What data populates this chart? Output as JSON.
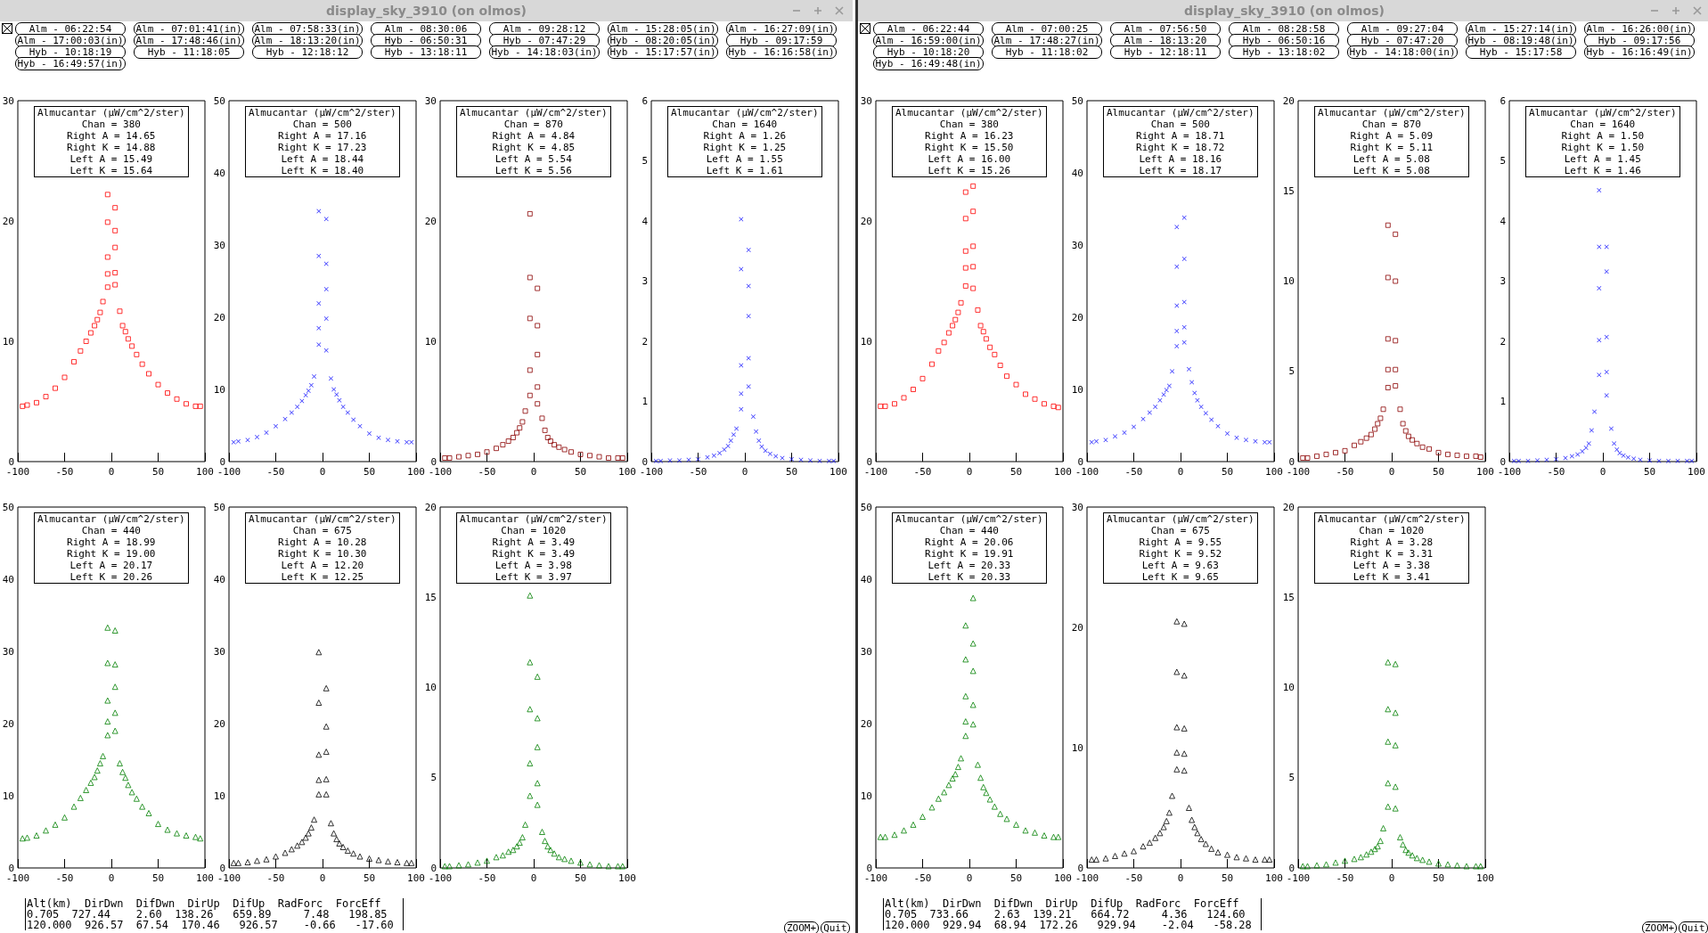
{
  "chart_data": [
    {
      "type": "other",
      "title": "display_sky_3910 (on olmos)",
      "annotations": [
        "Alm - 06:22:54",
        "Alm - 07:01:41(in)",
        "Alm - 07:58:33(in)",
        "Alm - 08:30:06",
        "Alm - 09:28:12",
        "Alm - 15:28:05(in)",
        "Alm - 16:27:09(in)",
        "Alm - 17:00:03(in)",
        "Alm - 17:48:46(in)",
        "Alm - 18:13:20(in)",
        "Hyb - 06:50:31",
        "Hyb - 07:47:29",
        "Hyb - 08:20:05(in)",
        "Hyb - 09:17:59",
        "Hyb - 10:18:19",
        "Hyb - 11:18:05",
        "Hyb - 12:18:12",
        "Hyb - 13:18:11",
        "Hyb - 14:18:03(in)",
        "Hyb - 15:17:57(in)",
        "Hyb - 16:16:58(in)",
        "Hyb - 16:49:57(in)"
      ]
    },
    {
      "type": "scatter",
      "title": "Almucantar (µW/cm^2/ster)",
      "annotations": [
        "Chan = 380",
        "Right A = 14.65",
        "Right K = 14.88",
        "Left A = 15.49",
        "Left K = 15.64"
      ],
      "marker": "square",
      "xlim": [
        -100,
        100
      ],
      "xticks": [
        -100,
        -50,
        0,
        50,
        100
      ],
      "ylim": [
        0,
        30
      ],
      "yticks": [
        0,
        10,
        20,
        30
      ],
      "x": [
        -95,
        -90,
        -80,
        -70,
        -60,
        -50,
        -40,
        -33,
        -27,
        -22,
        -18,
        -15,
        -12,
        -9,
        -4,
        -4,
        -4,
        -4,
        -4,
        4,
        4,
        4,
        4,
        4,
        9,
        12,
        15,
        18,
        22,
        27,
        33,
        40,
        50,
        60,
        70,
        80,
        90,
        95
      ],
      "series": [
        {
          "color": "#ff0000",
          "values": [
            4.6,
            4.7,
            4.9,
            5.4,
            6.1,
            7.0,
            8.3,
            9.2,
            10.0,
            10.7,
            11.3,
            11.8,
            12.4,
            13.3,
            14.5,
            15.6,
            17.0,
            19.9,
            22.2,
            21.1,
            19.2,
            17.8,
            15.7,
            14.7,
            12.5,
            11.3,
            10.8,
            10.2,
            9.6,
            8.9,
            8.1,
            7.3,
            6.4,
            5.7,
            5.2,
            4.8,
            4.6,
            4.6
          ]
        }
      ]
    },
    {
      "type": "scatter",
      "title": "Almucantar (µW/cm^2/ster)",
      "annotations": [
        "Chan = 500",
        "Right A = 17.16",
        "Right K = 17.23",
        "Left A = 18.44",
        "Left K = 18.40"
      ],
      "marker": "cross",
      "xlim": [
        -100,
        100
      ],
      "xticks": [
        -100,
        -50,
        0,
        50,
        100
      ],
      "ylim": [
        0,
        50
      ],
      "yticks": [
        0,
        10,
        20,
        30,
        40,
        50
      ],
      "x": [
        -95,
        -90,
        -80,
        -70,
        -60,
        -50,
        -40,
        -33,
        -27,
        -22,
        -18,
        -15,
        -12,
        -9,
        -4,
        -4,
        -4,
        -4,
        -4,
        4,
        4,
        4,
        4,
        4,
        9,
        12,
        15,
        18,
        22,
        27,
        33,
        40,
        50,
        60,
        70,
        80,
        90,
        95
      ],
      "series": [
        {
          "color": "#0000ff",
          "values": [
            2.7,
            2.8,
            3.0,
            3.4,
            4.0,
            4.9,
            5.9,
            6.8,
            7.6,
            8.4,
            9.2,
            9.8,
            10.6,
            11.8,
            16.2,
            18.5,
            21.9,
            28.5,
            34.7,
            33.6,
            27.4,
            23.9,
            19.8,
            15.4,
            11.5,
            10.0,
            9.3,
            8.5,
            7.6,
            6.8,
            5.8,
            4.9,
            3.9,
            3.3,
            3.0,
            2.8,
            2.7,
            2.7
          ]
        }
      ]
    },
    {
      "type": "scatter",
      "title": "Almucantar (µW/cm^2/ster)",
      "annotations": [
        "Chan = 870",
        "Right A = 4.84",
        "Right K = 4.85",
        "Left A = 5.54",
        "Left K = 5.56"
      ],
      "marker": "square",
      "xlim": [
        -100,
        100
      ],
      "xticks": [
        -100,
        -50,
        0,
        50,
        100
      ],
      "ylim": [
        0,
        30
      ],
      "yticks": [
        0,
        10,
        20,
        30
      ],
      "x": [
        -95,
        -90,
        -80,
        -70,
        -60,
        -50,
        -40,
        -33,
        -27,
        -22,
        -18,
        -15,
        -12,
        -9,
        -4,
        -4,
        -4,
        -4,
        -4,
        4,
        4,
        4,
        4,
        4,
        9,
        12,
        15,
        18,
        22,
        27,
        33,
        40,
        50,
        60,
        70,
        80,
        90,
        95
      ],
      "series": [
        {
          "color": "#8b0000",
          "values": [
            0.3,
            0.3,
            0.4,
            0.5,
            0.6,
            0.8,
            1.1,
            1.4,
            1.7,
            2.0,
            2.4,
            2.8,
            3.3,
            4.2,
            5.5,
            7.6,
            11.9,
            15.3,
            20.6,
            14.4,
            11.3,
            8.9,
            6.2,
            4.8,
            3.6,
            2.6,
            2.0,
            1.7,
            1.4,
            1.2,
            1.0,
            0.8,
            0.6,
            0.5,
            0.4,
            0.3,
            0.3,
            0.3
          ]
        }
      ]
    },
    {
      "type": "scatter",
      "title": "Almucantar (µW/cm^2/ster)",
      "annotations": [
        "Chan = 1640",
        "Right A = 1.26",
        "Right K = 1.25",
        "Left A = 1.55",
        "Left K = 1.61"
      ],
      "marker": "cross",
      "xlim": [
        -100,
        100
      ],
      "xticks": [
        -100,
        -50,
        0,
        50,
        100
      ],
      "ylim": [
        0,
        6
      ],
      "yticks": [
        0,
        1,
        2,
        3,
        4,
        5,
        6
      ],
      "x": [
        -95,
        -90,
        -80,
        -70,
        -60,
        -50,
        -40,
        -33,
        -27,
        -22,
        -18,
        -15,
        -12,
        -9,
        -4,
        -4,
        -4,
        -4,
        -4,
        4,
        4,
        4,
        4,
        4,
        9,
        12,
        15,
        18,
        22,
        27,
        33,
        40,
        50,
        60,
        70,
        80,
        90,
        95
      ],
      "series": [
        {
          "color": "#0000ff",
          "values": [
            0.01,
            0.01,
            0.02,
            0.02,
            0.03,
            0.04,
            0.07,
            0.1,
            0.14,
            0.2,
            0.26,
            0.35,
            0.45,
            0.55,
            0.87,
            1.13,
            1.6,
            3.2,
            4.03,
            3.52,
            2.92,
            2.42,
            1.72,
            1.25,
            0.75,
            0.5,
            0.35,
            0.25,
            0.18,
            0.13,
            0.09,
            0.06,
            0.04,
            0.03,
            0.02,
            0.01,
            0.01,
            0.01
          ]
        }
      ]
    },
    {
      "type": "scatter",
      "title": "Almucantar (µW/cm^2/ster)",
      "annotations": [
        "Chan = 440",
        "Right A = 18.99",
        "Right K = 19.00",
        "Left A = 20.17",
        "Left K = 20.26"
      ],
      "marker": "triangle",
      "xlim": [
        -100,
        100
      ],
      "xticks": [
        -100,
        -50,
        0,
        50,
        100
      ],
      "ylim": [
        0,
        50
      ],
      "yticks": [
        0,
        10,
        20,
        30,
        40,
        50
      ],
      "x": [
        -95,
        -90,
        -80,
        -70,
        -60,
        -50,
        -40,
        -33,
        -27,
        -22,
        -18,
        -15,
        -12,
        -9,
        -4,
        -4,
        -4,
        -4,
        -4,
        4,
        4,
        4,
        4,
        4,
        9,
        12,
        15,
        18,
        22,
        27,
        33,
        40,
        50,
        60,
        70,
        80,
        90,
        95
      ],
      "series": [
        {
          "color": "#008000",
          "values": [
            4.1,
            4.2,
            4.5,
            5.2,
            6.0,
            7.0,
            8.5,
            9.7,
            10.8,
            11.8,
            12.6,
            13.5,
            14.5,
            15.5,
            18.4,
            20.3,
            23.2,
            28.4,
            33.3,
            32.9,
            28.2,
            25.1,
            21.5,
            19.0,
            14.5,
            13.3,
            12.5,
            11.5,
            10.5,
            9.6,
            8.5,
            7.6,
            6.1,
            5.3,
            4.8,
            4.5,
            4.3,
            4.1
          ]
        }
      ]
    },
    {
      "type": "scatter",
      "title": "Almucantar (µW/cm^2/ster)",
      "annotations": [
        "Chan = 675",
        "Right A = 10.28",
        "Right K = 10.30",
        "Left A = 12.20",
        "Left K = 12.25"
      ],
      "marker": "triangle",
      "xlim": [
        -100,
        100
      ],
      "xticks": [
        -100,
        -50,
        0,
        50,
        100
      ],
      "ylim": [
        0,
        50
      ],
      "yticks": [
        0,
        10,
        20,
        30,
        40,
        50
      ],
      "x": [
        -95,
        -90,
        -80,
        -70,
        -60,
        -50,
        -40,
        -33,
        -27,
        -22,
        -18,
        -15,
        -12,
        -9,
        -4,
        -4,
        -4,
        -4,
        -4,
        4,
        4,
        4,
        4,
        4,
        9,
        12,
        15,
        18,
        22,
        27,
        33,
        40,
        50,
        60,
        70,
        80,
        90,
        95
      ],
      "series": [
        {
          "color": "#000000",
          "values": [
            0.7,
            0.7,
            0.8,
            1.0,
            1.2,
            1.6,
            2.1,
            2.6,
            3.1,
            3.6,
            4.2,
            4.8,
            5.6,
            6.7,
            10.2,
            12.2,
            15.7,
            22.9,
            29.9,
            24.9,
            19.6,
            16.1,
            12.3,
            10.2,
            6.2,
            4.8,
            4.0,
            3.4,
            2.9,
            2.4,
            2.0,
            1.6,
            1.3,
            1.1,
            0.9,
            0.8,
            0.7,
            0.7
          ]
        }
      ]
    },
    {
      "type": "scatter",
      "title": "Almucantar (µW/cm^2/ster)",
      "annotations": [
        "Chan = 1020",
        "Right A = 3.49",
        "Right K = 3.49",
        "Left A = 3.98",
        "Left K = 3.97"
      ],
      "marker": "triangle",
      "xlim": [
        -100,
        100
      ],
      "xticks": [
        -100,
        -50,
        0,
        50,
        100
      ],
      "ylim": [
        0,
        20
      ],
      "yticks": [
        0,
        5,
        10,
        15,
        20
      ],
      "x": [
        -95,
        -90,
        -80,
        -70,
        -60,
        -50,
        -40,
        -33,
        -27,
        -22,
        -18,
        -15,
        -12,
        -9,
        -4,
        -4,
        -4,
        -4,
        -4,
        4,
        4,
        4,
        4,
        4,
        9,
        12,
        15,
        18,
        22,
        27,
        33,
        40,
        50,
        60,
        70,
        80,
        90,
        95
      ],
      "series": [
        {
          "color": "#008000",
          "values": [
            0.1,
            0.1,
            0.15,
            0.2,
            0.3,
            0.4,
            0.6,
            0.7,
            0.9,
            1.0,
            1.2,
            1.4,
            1.7,
            2.4,
            4.0,
            5.8,
            8.8,
            11.4,
            15.1,
            10.6,
            8.3,
            6.7,
            4.7,
            3.5,
            2.0,
            1.5,
            1.2,
            1.0,
            0.8,
            0.6,
            0.5,
            0.4,
            0.3,
            0.2,
            0.15,
            0.1,
            0.1,
            0.1
          ]
        }
      ]
    },
    {
      "type": "other",
      "annotations": [
        "Alt(km)  DirDwn  DifDwn  DirUp  DifUp  RadForc  ForcEff",
        "0.705  727.44    2.60  138.26   659.89     7.48   198.85",
        "120.000  926.57  67.54  170.46   926.57    -0.66   -17.60"
      ]
    },
    {
      "type": "other",
      "annotations": [
        "ZOOM+",
        "Quit"
      ]
    },
    {
      "type": "other",
      "title": "display_sky_3910 (on olmos)",
      "annotations": [
        "Alm - 06:22:44",
        "Alm - 07:00:25",
        "Alm - 07:56:50",
        "Alm - 08:28:58",
        "Alm - 09:27:04",
        "Alm - 15:27:14(in)",
        "Alm - 16:26:00(in)",
        "Alm - 16:59:00(in)",
        "Alm - 17:48:27(in)",
        "Alm - 18:13:20",
        "Hyb - 06:50:16",
        "Hyb - 07:47:20",
        "Hyb - 08:19:48(in)",
        "Hyb - 09:17:56",
        "Hyb - 10:18:20",
        "Hyb - 11:18:02",
        "Hyb - 12:18:11",
        "Hyb - 13:18:02",
        "Hyb - 14:18:00(in)",
        "Hyb - 15:17:58",
        "Hyb - 16:16:49(in)",
        "Hyb - 16:49:48(in)"
      ]
    },
    {
      "type": "scatter",
      "title": "Almucantar (µW/cm^2/ster)",
      "annotations": [
        "Chan = 380",
        "Right A = 16.23",
        "Right K = 15.50",
        "Left A = 16.00",
        "Left K = 15.26"
      ],
      "marker": "square",
      "xlim": [
        -100,
        100
      ],
      "xticks": [
        -100,
        -50,
        0,
        50,
        100
      ],
      "ylim": [
        0,
        30
      ],
      "yticks": [
        0,
        10,
        20,
        30
      ],
      "x": [
        -95,
        -90,
        -80,
        -70,
        -60,
        -50,
        -40,
        -33,
        -27,
        -22,
        -18,
        -15,
        -12,
        -9,
        -4,
        -4,
        -4,
        -4,
        -4,
        4,
        4,
        4,
        4,
        4,
        9,
        12,
        15,
        18,
        22,
        27,
        33,
        40,
        50,
        60,
        70,
        80,
        90,
        95
      ],
      "series": [
        {
          "color": "#ff0000",
          "values": [
            4.6,
            4.6,
            4.8,
            5.3,
            6.0,
            6.9,
            8.1,
            9.2,
            9.9,
            10.7,
            11.3,
            11.8,
            12.4,
            13.2,
            14.6,
            16.1,
            17.5,
            20.2,
            22.4,
            22.9,
            20.8,
            17.9,
            16.2,
            14.4,
            12.6,
            11.3,
            10.8,
            10.2,
            9.5,
            8.9,
            8.0,
            7.1,
            6.4,
            5.6,
            5.2,
            4.8,
            4.6,
            4.5
          ]
        }
      ]
    },
    {
      "type": "scatter",
      "title": "Almucantar (µW/cm^2/ster)",
      "annotations": [
        "Chan = 500",
        "Right A = 18.71",
        "Right K = 18.72",
        "Left A = 18.16",
        "Left K = 18.17"
      ],
      "marker": "cross",
      "xlim": [
        -100,
        100
      ],
      "xticks": [
        -100,
        -50,
        0,
        50,
        100
      ],
      "ylim": [
        0,
        50
      ],
      "yticks": [
        0,
        10,
        20,
        30,
        40,
        50
      ],
      "x": [
        -95,
        -90,
        -80,
        -70,
        -60,
        -50,
        -40,
        -33,
        -27,
        -22,
        -18,
        -15,
        -12,
        -9,
        -4,
        -4,
        -4,
        -4,
        -4,
        4,
        4,
        4,
        4,
        4,
        9,
        12,
        15,
        18,
        22,
        27,
        33,
        40,
        50,
        60,
        70,
        80,
        90,
        95
      ],
      "series": [
        {
          "color": "#0000ff",
          "values": [
            2.7,
            2.8,
            3.0,
            3.5,
            4.0,
            4.8,
            5.9,
            6.8,
            7.6,
            8.5,
            9.3,
            9.9,
            10.5,
            12.5,
            16.0,
            18.1,
            21.6,
            27.0,
            32.5,
            33.8,
            28.1,
            22.1,
            18.6,
            16.5,
            12.8,
            11.0,
            9.5,
            8.5,
            7.6,
            6.7,
            5.8,
            4.9,
            3.9,
            3.3,
            3.0,
            2.8,
            2.7,
            2.7
          ]
        }
      ]
    },
    {
      "type": "scatter",
      "title": "Almucantar (µW/cm^2/ster)",
      "annotations": [
        "Chan = 870",
        "Right A = 5.09",
        "Right K = 5.11",
        "Left A = 5.08",
        "Left K = 5.08"
      ],
      "marker": "square",
      "xlim": [
        -100,
        100
      ],
      "xticks": [
        -100,
        -50,
        0,
        50,
        100
      ],
      "ylim": [
        0,
        20
      ],
      "yticks": [
        0,
        5,
        10,
        15,
        20
      ],
      "x": [
        -95,
        -90,
        -80,
        -70,
        -60,
        -50,
        -40,
        -33,
        -27,
        -22,
        -18,
        -15,
        -12,
        -9,
        -4,
        -4,
        -4,
        -4,
        -4,
        4,
        4,
        4,
        4,
        4,
        9,
        12,
        15,
        18,
        22,
        27,
        33,
        40,
        50,
        60,
        70,
        80,
        90,
        95
      ],
      "series": [
        {
          "color": "#8b0000",
          "values": [
            0.2,
            0.2,
            0.3,
            0.4,
            0.5,
            0.6,
            0.9,
            1.1,
            1.3,
            1.5,
            1.8,
            2.1,
            2.4,
            2.9,
            4.1,
            5.1,
            6.8,
            10.2,
            13.1,
            12.6,
            10.0,
            6.7,
            5.1,
            4.2,
            2.9,
            2.1,
            1.7,
            1.4,
            1.2,
            1.0,
            0.8,
            0.7,
            0.5,
            0.4,
            0.35,
            0.3,
            0.3,
            0.25
          ]
        }
      ]
    },
    {
      "type": "scatter",
      "title": "Almucantar (µW/cm^2/ster)",
      "annotations": [
        "Chan = 1640",
        "Right A = 1.50",
        "Right K = 1.50",
        "Left A = 1.45",
        "Left K = 1.46"
      ],
      "marker": "cross",
      "xlim": [
        -100,
        100
      ],
      "xticks": [
        -100,
        -50,
        0,
        50,
        100
      ],
      "ylim": [
        0,
        6
      ],
      "yticks": [
        0,
        1,
        2,
        3,
        4,
        5,
        6
      ],
      "x": [
        -95,
        -90,
        -80,
        -70,
        -60,
        -50,
        -40,
        -33,
        -27,
        -22,
        -18,
        -15,
        -12,
        -9,
        -4,
        -4,
        -4,
        -4,
        -4,
        4,
        4,
        4,
        4,
        4,
        9,
        12,
        15,
        18,
        22,
        27,
        33,
        40,
        50,
        60,
        70,
        80,
        90,
        95
      ],
      "series": [
        {
          "color": "#0000ff",
          "values": [
            0.01,
            0.01,
            0.01,
            0.02,
            0.03,
            0.04,
            0.06,
            0.09,
            0.12,
            0.17,
            0.23,
            0.3,
            0.52,
            0.83,
            1.44,
            2.02,
            2.88,
            3.57,
            4.51,
            3.57,
            3.16,
            2.07,
            1.49,
            1.1,
            0.55,
            0.3,
            0.2,
            0.14,
            0.1,
            0.07,
            0.05,
            0.03,
            0.02,
            0.01,
            0.01,
            0.01,
            0.01,
            0.01
          ]
        }
      ]
    },
    {
      "type": "scatter",
      "title": "Almucantar (µW/cm^2/ster)",
      "annotations": [
        "Chan = 440",
        "Right A = 20.06",
        "Right K = 19.91",
        "Left A = 20.33",
        "Left K = 20.33"
      ],
      "marker": "triangle",
      "xlim": [
        -100,
        100
      ],
      "xticks": [
        -100,
        -50,
        0,
        50,
        100
      ],
      "ylim": [
        0,
        50
      ],
      "yticks": [
        0,
        10,
        20,
        30,
        40,
        50
      ],
      "x": [
        -95,
        -90,
        -80,
        -70,
        -60,
        -50,
        -40,
        -33,
        -27,
        -22,
        -18,
        -15,
        -12,
        -9,
        -4,
        -4,
        -4,
        -4,
        -4,
        4,
        4,
        4,
        4,
        4,
        9,
        12,
        15,
        18,
        22,
        27,
        33,
        40,
        50,
        60,
        70,
        80,
        90,
        95
      ],
      "series": [
        {
          "color": "#008000",
          "values": [
            4.3,
            4.3,
            4.6,
            5.2,
            6.0,
            7.1,
            8.4,
            9.6,
            10.5,
            11.5,
            12.4,
            13.0,
            14.0,
            15.2,
            18.3,
            20.3,
            23.8,
            28.9,
            33.6,
            37.4,
            31.1,
            27.3,
            22.6,
            19.9,
            14.3,
            12.5,
            11.2,
            10.4,
            9.5,
            8.5,
            7.5,
            6.8,
            6.0,
            5.2,
            4.9,
            4.5,
            4.3,
            4.3
          ]
        }
      ]
    },
    {
      "type": "scatter",
      "title": "Almucantar (µW/cm^2/ster)",
      "annotations": [
        "Chan = 675",
        "Right A = 9.55",
        "Right K = 9.52",
        "Left A = 9.63",
        "Left K = 9.65"
      ],
      "marker": "triangle",
      "xlim": [
        -100,
        100
      ],
      "xticks": [
        -100,
        -50,
        0,
        50,
        100
      ],
      "ylim": [
        0,
        30
      ],
      "yticks": [
        0,
        10,
        20,
        30
      ],
      "x": [
        -95,
        -90,
        -80,
        -70,
        -60,
        -50,
        -40,
        -33,
        -27,
        -22,
        -18,
        -15,
        -12,
        -9,
        -4,
        -4,
        -4,
        -4,
        -4,
        4,
        4,
        4,
        4,
        4,
        9,
        12,
        15,
        18,
        22,
        27,
        33,
        40,
        50,
        60,
        70,
        80,
        90,
        95
      ],
      "series": [
        {
          "color": "#000000",
          "values": [
            0.7,
            0.7,
            0.8,
            1.0,
            1.2,
            1.4,
            1.8,
            2.1,
            2.5,
            2.9,
            3.4,
            3.9,
            4.6,
            6.0,
            8.2,
            9.6,
            11.7,
            16.3,
            20.5,
            20.3,
            16.0,
            11.6,
            9.5,
            8.1,
            5.0,
            4.0,
            3.4,
            2.9,
            2.4,
            2.0,
            1.6,
            1.3,
            1.1,
            0.9,
            0.8,
            0.7,
            0.7,
            0.7
          ]
        }
      ]
    },
    {
      "type": "scatter",
      "title": "Almucantar (µW/cm^2/ster)",
      "annotations": [
        "Chan = 1020",
        "Right A = 3.28",
        "Right K = 3.31",
        "Left A = 3.38",
        "Left K = 3.41"
      ],
      "marker": "triangle",
      "xlim": [
        -100,
        100
      ],
      "xticks": [
        -100,
        -50,
        0,
        50,
        100
      ],
      "ylim": [
        0,
        20
      ],
      "yticks": [
        0,
        5,
        10,
        15,
        20
      ],
      "x": [
        -95,
        -90,
        -80,
        -70,
        -60,
        -50,
        -40,
        -33,
        -27,
        -22,
        -18,
        -15,
        -12,
        -9,
        -4,
        -4,
        -4,
        -4,
        -4,
        4,
        4,
        4,
        4,
        4,
        9,
        12,
        15,
        18,
        22,
        27,
        33,
        40,
        50,
        60,
        70,
        80,
        90,
        95
      ],
      "series": [
        {
          "color": "#008000",
          "values": [
            0.1,
            0.1,
            0.15,
            0.2,
            0.3,
            0.4,
            0.5,
            0.6,
            0.75,
            0.9,
            1.05,
            1.2,
            1.5,
            2.2,
            3.4,
            4.7,
            7.0,
            8.8,
            11.4,
            11.3,
            8.6,
            6.8,
            4.5,
            3.3,
            1.7,
            1.3,
            1.0,
            0.85,
            0.7,
            0.55,
            0.45,
            0.35,
            0.25,
            0.2,
            0.15,
            0.1,
            0.1,
            0.1
          ]
        }
      ]
    },
    {
      "type": "other",
      "annotations": [
        "Alt(km)  DirDwn  DifDwn  DirUp  DifUp  RadForc  ForcEff",
        "0.705  733.66    2.63  139.21   664.72     4.36   124.60",
        "120.000  929.94  68.94  172.26   929.94    -2.04   -58.28"
      ]
    },
    {
      "type": "other",
      "annotations": [
        "ZOOM+",
        "Quit"
      ]
    }
  ]
}
